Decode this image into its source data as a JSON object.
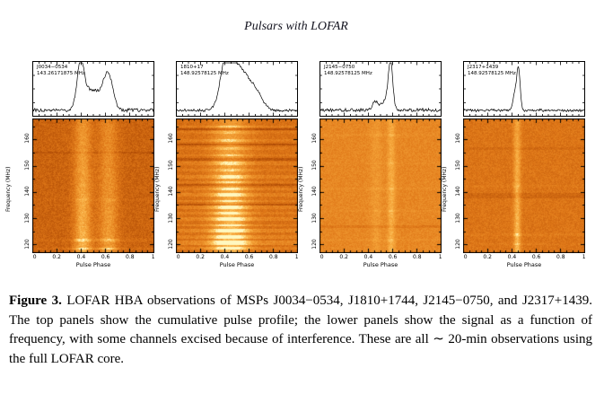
{
  "header": {
    "title": "Pulsars with LOFAR"
  },
  "axes": {
    "x_label": "Pulse Phase",
    "x_ticks": [
      "0",
      "0.2",
      "0.4",
      "0.6",
      "0.8",
      "1"
    ],
    "y_label": "Frequency (MHz)",
    "y_ticks": [
      "160",
      "150",
      "140",
      "130",
      "120"
    ],
    "x_range": [
      0,
      1
    ],
    "y_range": [
      117,
      168
    ]
  },
  "caption": {
    "label": "Figure 3.",
    "text": "LOFAR HBA observations of MSPs J0034−0534, J1810+1744, J2145−0750, and J2317+1439. The top panels show the cumulative pulse profile; the lower panels show the signal as a function of frequency, with some channels excised because of interference. These are all ∼ 20-min observations using the full LOFAR core."
  },
  "chart_data": [
    {
      "type": "line+heatmap",
      "pulsar": "J0034−0534",
      "freq_label": "143.26171875 MHz",
      "xlabel": "Pulse Phase",
      "ylabel": "Frequency (MHz)",
      "profile": {
        "peaks": [
          [
            0.395,
            0.95,
            0.028
          ],
          [
            0.45,
            0.38,
            0.05
          ],
          [
            0.54,
            0.3,
            0.05
          ],
          [
            0.625,
            0.78,
            0.038
          ]
        ],
        "noise": 0.05
      },
      "heatmap": {
        "base": 0.38,
        "noise": 0.1,
        "boost": 0.5,
        "bands": [
          [
            0.41,
            0.05,
            0.34
          ],
          [
            0.62,
            0.055,
            0.26
          ]
        ],
        "stripes": [
          [
            0.6,
            0.08,
            1
          ],
          [
            0.9,
            0.18,
            1
          ],
          [
            0.965,
            0.22,
            1
          ]
        ],
        "dark_rows": [
          [
            0.25,
            0.08,
            1
          ]
        ]
      }
    },
    {
      "type": "line+heatmap",
      "pulsar": "1810+17",
      "freq_label": "148.92578125 MHz",
      "xlabel": "Pulse Phase",
      "ylabel": "Frequency (MHz)",
      "profile": {
        "peaks": [
          [
            0.41,
            0.92,
            0.045
          ],
          [
            0.49,
            0.75,
            0.07
          ],
          [
            0.59,
            0.45,
            0.075
          ],
          [
            0.67,
            0.18,
            0.05
          ]
        ],
        "noise": 0.035
      },
      "heatmap": {
        "base": 0.45,
        "noise": 0.08,
        "boost": 0.5,
        "bands": [
          [
            0.44,
            0.1,
            0.3
          ]
        ],
        "stripes": [
          [
            0.055,
            0.3,
            1
          ],
          [
            0.1,
            0.22,
            1
          ],
          [
            0.16,
            0.28,
            1
          ],
          [
            0.22,
            0.2,
            1
          ],
          [
            0.27,
            0.25,
            1
          ],
          [
            0.33,
            0.3,
            2
          ],
          [
            0.38,
            0.22,
            1
          ],
          [
            0.43,
            0.35,
            2
          ],
          [
            0.47,
            0.28,
            1
          ],
          [
            0.52,
            0.3,
            1
          ],
          [
            0.565,
            0.38,
            2
          ],
          [
            0.61,
            0.3,
            1
          ],
          [
            0.655,
            0.35,
            2
          ],
          [
            0.7,
            0.3,
            1
          ],
          [
            0.745,
            0.4,
            2
          ],
          [
            0.79,
            0.35,
            1
          ],
          [
            0.83,
            0.45,
            2
          ],
          [
            0.875,
            0.4,
            2
          ],
          [
            0.92,
            0.5,
            2
          ],
          [
            0.96,
            0.35,
            1
          ]
        ],
        "dark_rows": [
          [
            0.075,
            0.2,
            1
          ],
          [
            0.19,
            0.18,
            1
          ],
          [
            0.3,
            0.15,
            1
          ],
          [
            0.49,
            0.15,
            1
          ],
          [
            0.635,
            0.15,
            1
          ]
        ]
      }
    },
    {
      "type": "line+heatmap",
      "pulsar": "J2145−0750",
      "freq_label": "148.92578125 MHz",
      "xlabel": "Pulse Phase",
      "ylabel": "Frequency (MHz)",
      "profile": {
        "peaks": [
          [
            0.46,
            0.2,
            0.022
          ],
          [
            0.555,
            0.28,
            0.035
          ],
          [
            0.585,
            0.95,
            0.017
          ]
        ],
        "noise": 0.045
      },
      "heatmap": {
        "base": 0.58,
        "noise": 0.07,
        "boost": 0.2,
        "bands": [
          [
            0.46,
            0.035,
            0.1
          ],
          [
            0.585,
            0.022,
            0.22
          ]
        ],
        "stripes": [
          [
            0.12,
            0.1,
            1
          ],
          [
            0.33,
            0.08,
            1
          ],
          [
            0.52,
            0.1,
            1
          ],
          [
            0.68,
            0.12,
            1
          ],
          [
            0.9,
            0.1,
            1
          ]
        ],
        "dark_rows": [
          [
            0.8,
            0.08,
            1
          ]
        ]
      }
    },
    {
      "type": "line+heatmap",
      "pulsar": "J2317+1439",
      "freq_label": "148.92578125 MHz",
      "xlabel": "Pulse Phase",
      "ylabel": "Frequency (MHz)",
      "profile": {
        "peaks": [
          [
            0.424,
            0.35,
            0.015
          ],
          [
            0.455,
            0.95,
            0.014
          ]
        ],
        "noise": 0.035
      },
      "heatmap": {
        "base": 0.48,
        "noise": 0.08,
        "boost": 0.3,
        "bands": [
          [
            0.44,
            0.02,
            0.33
          ]
        ],
        "stripes": [
          [
            0.5,
            0.1,
            1
          ],
          [
            0.86,
            0.15,
            1
          ],
          [
            0.93,
            0.12,
            1
          ]
        ],
        "dark_rows": [
          [
            0.22,
            0.06,
            1
          ],
          [
            0.57,
            0.08,
            3
          ]
        ]
      }
    }
  ]
}
